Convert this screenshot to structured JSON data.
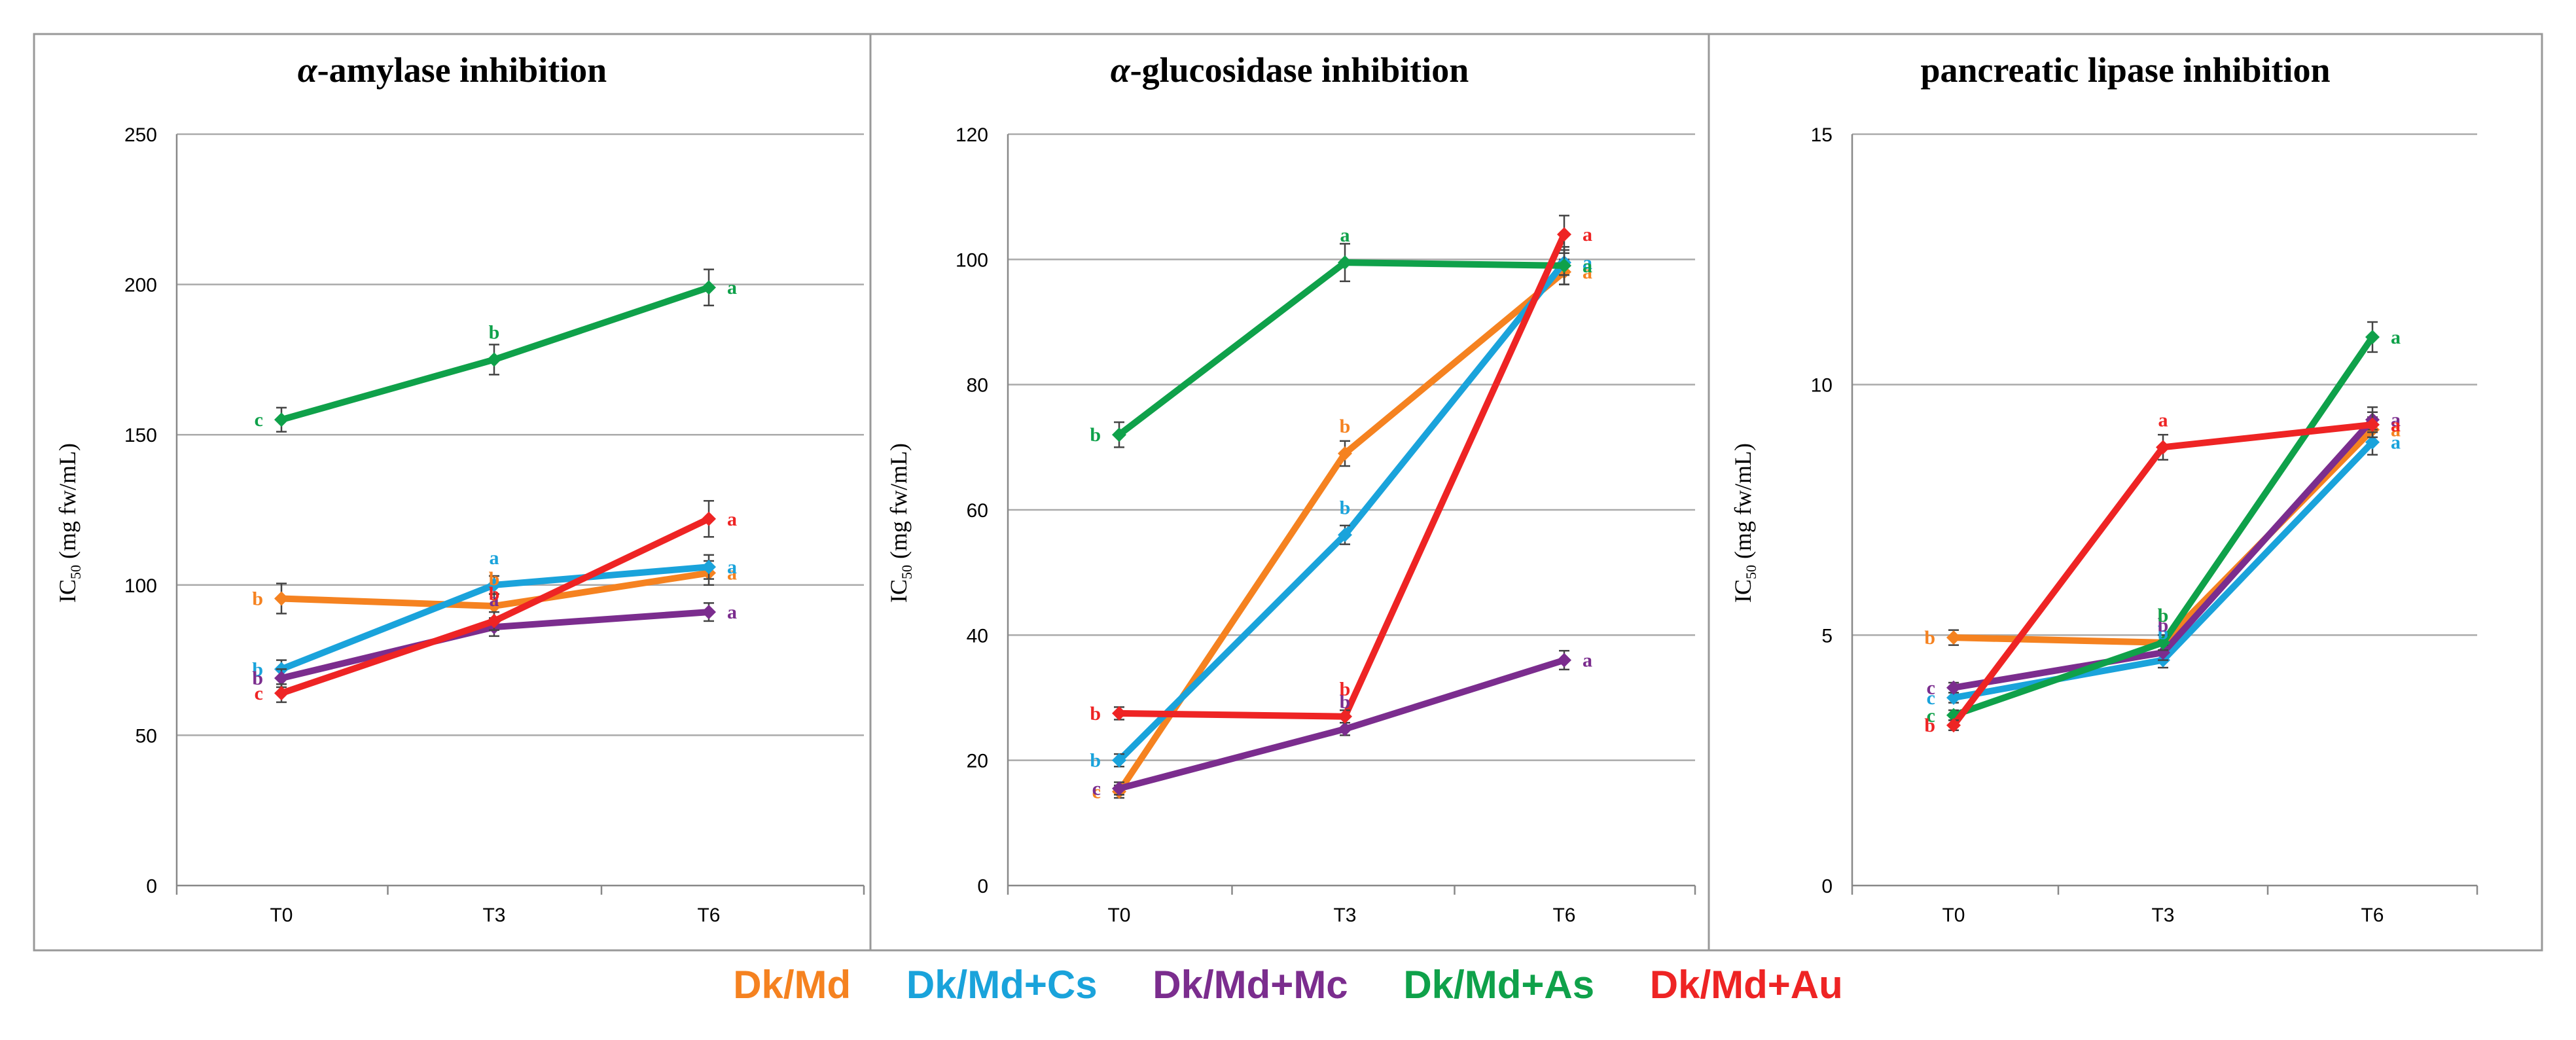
{
  "chart_data": [
    {
      "type": "line",
      "title": "α-amylase inhibition",
      "title_prefix": "α",
      "title_rest": "-amylase inhibition",
      "ylabel_main": "IC",
      "ylabel_sub": "50",
      "ylabel_rest": " (mg fw/mL)",
      "categories": [
        "T0",
        "T3",
        "T6"
      ],
      "ylim": [
        0,
        250
      ],
      "yticks": [
        0,
        50,
        100,
        150,
        200,
        250
      ],
      "series": [
        {
          "name": "Dk/Md",
          "values": [
            95.5,
            93,
            104
          ],
          "errors": [
            5,
            4,
            4
          ],
          "letters": [
            "b",
            "b",
            "a"
          ]
        },
        {
          "name": "Dk/Md+Cs",
          "values": [
            72,
            100,
            106
          ],
          "errors": [
            3,
            3,
            4
          ],
          "letters": [
            "b",
            "a",
            "a"
          ]
        },
        {
          "name": "Dk/Md+Mc",
          "values": [
            69,
            86,
            91
          ],
          "errors": [
            3,
            3,
            3
          ],
          "letters": [
            "b",
            "a",
            "a"
          ]
        },
        {
          "name": "Dk/Md+As",
          "values": [
            155,
            175,
            199
          ],
          "errors": [
            4,
            5,
            6
          ],
          "letters": [
            "c",
            "b",
            "a"
          ]
        },
        {
          "name": "Dk/Md+Au",
          "values": [
            64,
            88,
            122
          ],
          "errors": [
            3,
            3,
            6
          ],
          "letters": [
            "c",
            "b",
            "a"
          ]
        }
      ]
    },
    {
      "type": "line",
      "title": "α-glucosidase inhibition",
      "title_prefix": "α",
      "title_rest": "-glucosidase inhibition",
      "ylabel_main": "IC",
      "ylabel_sub": "50",
      "ylabel_rest": " (mg fw/mL)",
      "categories": [
        "T0",
        "T3",
        "T6"
      ],
      "ylim": [
        0,
        120
      ],
      "yticks": [
        0,
        20,
        40,
        60,
        80,
        100,
        120
      ],
      "series": [
        {
          "name": "Dk/Md",
          "values": [
            15,
            69,
            98
          ],
          "errors": [
            1,
            2,
            2
          ],
          "letters": [
            "c",
            "b",
            "a"
          ]
        },
        {
          "name": "Dk/Md+Cs",
          "values": [
            20,
            56,
            99.5
          ],
          "errors": [
            1,
            1.5,
            2
          ],
          "letters": [
            "b",
            "b",
            "a"
          ]
        },
        {
          "name": "Dk/Md+Mc",
          "values": [
            15.5,
            25,
            36
          ],
          "errors": [
            1,
            1,
            1.5
          ],
          "letters": [
            "c",
            "b",
            "a"
          ]
        },
        {
          "name": "Dk/Md+As",
          "values": [
            72,
            99.5,
            99
          ],
          "errors": [
            2,
            3,
            3
          ],
          "letters": [
            "b",
            "a",
            "a"
          ]
        },
        {
          "name": "Dk/Md+Au",
          "values": [
            27.5,
            27,
            104
          ],
          "errors": [
            1,
            1,
            3
          ],
          "letters": [
            "b",
            "b",
            "a"
          ]
        }
      ]
    },
    {
      "type": "line",
      "title": "pancreatic lipase inhibition",
      "title_prefix": "",
      "title_rest": "pancreatic lipase inhibition",
      "ylabel_main": "IC",
      "ylabel_sub": "50",
      "ylabel_rest": " (mg fw/mL)",
      "categories": [
        "T0",
        "T3",
        "T6"
      ],
      "ylim": [
        0,
        15
      ],
      "yticks": [
        0,
        5,
        10,
        15
      ],
      "series": [
        {
          "name": "Dk/Md",
          "values": [
            4.95,
            4.85,
            9.1
          ],
          "errors": [
            0.15,
            0.15,
            0.25
          ],
          "letters": [
            "b",
            "b",
            "a"
          ]
        },
        {
          "name": "Dk/Md+Cs",
          "values": [
            3.75,
            4.5,
            8.85
          ],
          "errors": [
            0.1,
            0.15,
            0.25
          ],
          "letters": [
            "c",
            "b",
            "a"
          ]
        },
        {
          "name": "Dk/Md+Mc",
          "values": [
            3.95,
            4.65,
            9.3
          ],
          "errors": [
            0.1,
            0.15,
            0.25
          ],
          "letters": [
            "c",
            "b",
            "a"
          ]
        },
        {
          "name": "Dk/Md+As",
          "values": [
            3.4,
            4.85,
            10.95
          ],
          "errors": [
            0.1,
            0.15,
            0.3
          ],
          "letters": [
            "c",
            "b",
            "a"
          ]
        },
        {
          "name": "Dk/Md+Au",
          "values": [
            3.2,
            8.75,
            9.2
          ],
          "errors": [
            0.1,
            0.25,
            0.25
          ],
          "letters": [
            "b",
            "a",
            "a"
          ]
        }
      ]
    }
  ],
  "legend": [
    {
      "name": "Dk/Md",
      "color": "#f58220"
    },
    {
      "name": "Dk/Md+Cs",
      "color": "#1aa3db"
    },
    {
      "name": "Dk/Md+Mc",
      "color": "#7b2d8e"
    },
    {
      "name": "Dk/Md+As",
      "color": "#0fa14a"
    },
    {
      "name": "Dk/Md+Au",
      "color": "#ee2424"
    }
  ]
}
